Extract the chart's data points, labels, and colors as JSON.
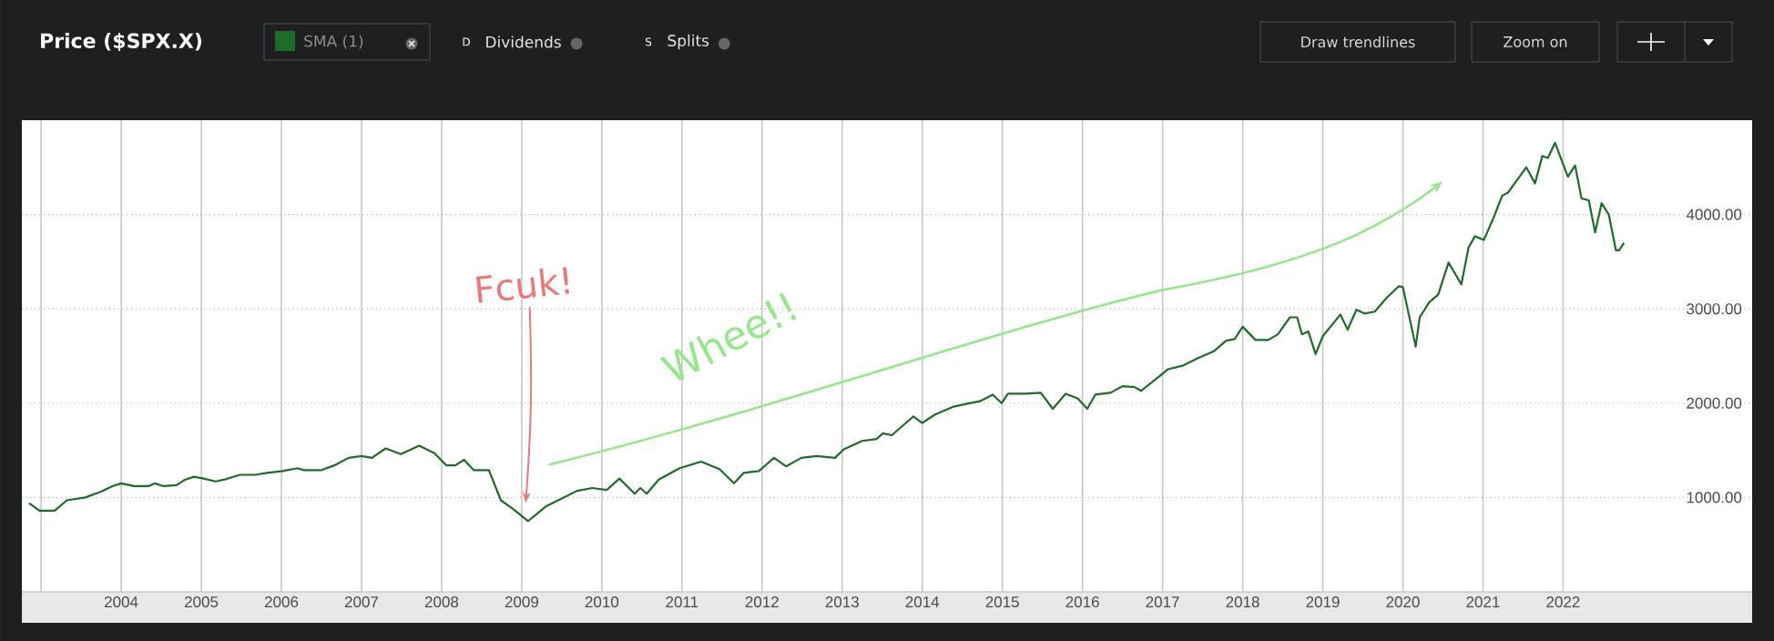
{
  "chart_data": {
    "type": "line",
    "title": "Price ($SPX.X)",
    "xlim": [
      2002.76,
      2024.36
    ],
    "ylim": [
      0,
      5000
    ],
    "xticks": [
      {
        "value": 2003,
        "label": null
      },
      2004,
      2005,
      2006,
      2007,
      2008,
      2009,
      2010,
      2011,
      2012,
      2013,
      2014,
      2015,
      2016,
      2017,
      2018,
      2019,
      2020,
      2021,
      2022
    ],
    "yticks": [
      {
        "value": 1000,
        "label": "1000.00"
      },
      {
        "value": 2000,
        "label": "2000.00"
      },
      {
        "value": 3000,
        "label": "3000.00"
      },
      {
        "value": 4000,
        "label": "4000.00"
      }
    ],
    "grid": true,
    "legend": "top left",
    "series": [
      {
        "name": "SMA (1)",
        "color": "#1f6b28",
        "x": [
          2002.85,
          2002.98,
          2003.17,
          2003.32,
          2003.55,
          2003.74,
          2003.89,
          2004.0,
          2004.16,
          2004.34,
          2004.42,
          2004.53,
          2004.69,
          2004.8,
          2004.91,
          2005.03,
          2005.18,
          2005.29,
          2005.48,
          2005.67,
          2005.82,
          2006.01,
          2006.2,
          2006.28,
          2006.5,
          2006.66,
          2006.84,
          2007.0,
          2007.13,
          2007.3,
          2007.49,
          2007.72,
          2007.91,
          2008.06,
          2008.17,
          2008.28,
          2008.4,
          2008.59,
          2008.74,
          2008.89,
          2009.08,
          2009.31,
          2009.5,
          2009.69,
          2009.88,
          2010.06,
          2010.22,
          2010.41,
          2010.48,
          2010.56,
          2010.71,
          2010.97,
          2011.24,
          2011.47,
          2011.65,
          2011.77,
          2011.96,
          2012.15,
          2012.3,
          2012.49,
          2012.68,
          2012.91,
          2013.02,
          2013.25,
          2013.43,
          2013.51,
          2013.62,
          2013.89,
          2014.0,
          2014.16,
          2014.38,
          2014.53,
          2014.72,
          2014.88,
          2014.99,
          2015.07,
          2015.29,
          2015.48,
          2015.63,
          2015.79,
          2015.94,
          2016.06,
          2016.16,
          2016.35,
          2016.5,
          2016.65,
          2016.73,
          2016.88,
          2017.07,
          2017.26,
          2017.45,
          2017.64,
          2017.79,
          2017.9,
          2018.0,
          2018.16,
          2018.32,
          2018.44,
          2018.59,
          2018.68,
          2018.74,
          2018.82,
          2018.91,
          2019.0,
          2019.22,
          2019.31,
          2019.42,
          2019.52,
          2019.65,
          2019.8,
          2019.95,
          2020.0,
          2020.16,
          2020.21,
          2020.33,
          2020.44,
          2020.57,
          2020.73,
          2020.82,
          2020.9,
          2021.01,
          2021.12,
          2021.24,
          2021.31,
          2021.54,
          2021.65,
          2021.74,
          2021.81,
          2021.9,
          2022.06,
          2022.15,
          2022.23,
          2022.32,
          2022.4,
          2022.48,
          2022.57,
          2022.66,
          2022.7,
          2022.76
        ],
        "values": [
          940,
          860,
          860,
          970,
          1000,
          1060,
          1120,
          1150,
          1120,
          1120,
          1150,
          1120,
          1130,
          1190,
          1220,
          1200,
          1170,
          1190,
          1240,
          1240,
          1260,
          1280,
          1310,
          1290,
          1290,
          1340,
          1420,
          1440,
          1420,
          1520,
          1460,
          1550,
          1470,
          1340,
          1340,
          1400,
          1290,
          1290,
          970,
          880,
          750,
          910,
          990,
          1070,
          1100,
          1080,
          1200,
          1040,
          1100,
          1040,
          1190,
          1310,
          1380,
          1300,
          1150,
          1260,
          1280,
          1420,
          1330,
          1420,
          1440,
          1420,
          1510,
          1600,
          1620,
          1680,
          1660,
          1860,
          1790,
          1880,
          1960,
          1990,
          2020,
          2090,
          2000,
          2100,
          2100,
          2110,
          1940,
          2100,
          2050,
          1940,
          2090,
          2110,
          2180,
          2170,
          2130,
          2230,
          2360,
          2400,
          2480,
          2550,
          2660,
          2680,
          2810,
          2670,
          2670,
          2730,
          2910,
          2910,
          2730,
          2760,
          2520,
          2710,
          2940,
          2780,
          2990,
          2950,
          2970,
          3120,
          3240,
          3230,
          2600,
          2910,
          3070,
          3150,
          3490,
          3260,
          3650,
          3770,
          3730,
          3940,
          4200,
          4230,
          4500,
          4330,
          4620,
          4600,
          4760,
          4400,
          4520,
          4170,
          4150,
          3810,
          4120,
          4000,
          3620,
          3620,
          3700
        ]
      }
    ],
    "annotations": [
      "Fcuk!",
      "Whee!!",
      "D",
      "Dividends",
      "S",
      "Splits",
      "Draw trendlines",
      "Zoom on"
    ]
  }
}
